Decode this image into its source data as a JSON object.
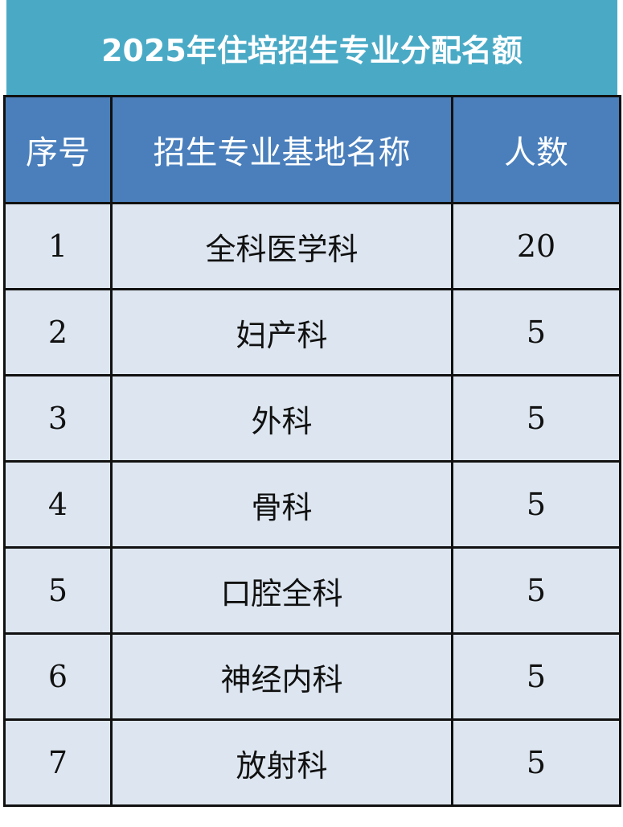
{
  "title": "2025年住培招生专业分配名额",
  "columns": [
    "序号",
    "招生专业基地名称",
    "人数"
  ],
  "rows": [
    [
      "1",
      "全科医学科",
      "20"
    ],
    [
      "2",
      "妇产科",
      "5"
    ],
    [
      "3",
      "外科",
      "5"
    ],
    [
      "4",
      "骨科",
      "5"
    ],
    [
      "5",
      "口腔全科",
      "5"
    ],
    [
      "6",
      "神经内科",
      "5"
    ],
    [
      "7",
      "放射科",
      "5"
    ]
  ],
  "colors": {
    "title_bg": "#4aaac6",
    "header_bg": "#4a7fbc",
    "row_bg": "#dde6f0",
    "border": "#111111"
  }
}
